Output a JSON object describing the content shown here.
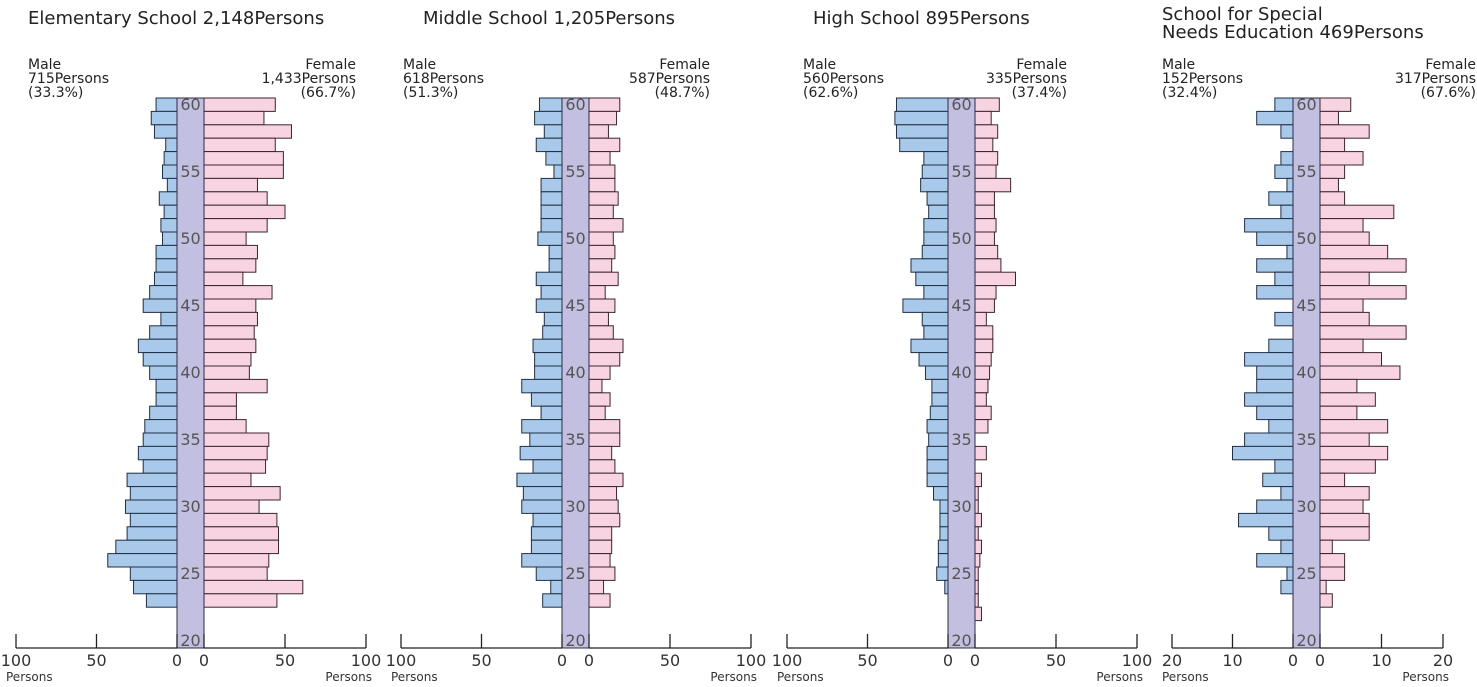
{
  "chart_data": [
    {
      "type": "bar",
      "title": "Elementary School 2,148Persons",
      "male_header": "Male\n715Persons\n(33.3%)",
      "female_header": "Female\n1,433Persons\n(66.7%)",
      "age_labels": [
        "60",
        "55",
        "50",
        "45",
        "40",
        "35",
        "30",
        "25",
        "20"
      ],
      "x_ticks": [
        "100",
        "50",
        "0",
        "0",
        "50",
        "100"
      ],
      "x_unit": "Persons",
      "xlim": [
        0,
        100
      ],
      "ages": [
        60,
        59,
        58,
        57,
        56,
        55,
        54,
        53,
        52,
        51,
        50,
        49,
        48,
        47,
        46,
        45,
        44,
        43,
        42,
        41,
        40,
        39,
        38,
        37,
        36,
        35,
        34,
        33,
        32,
        31,
        30,
        29,
        28,
        27,
        26,
        25,
        24,
        23,
        22,
        21,
        20
      ],
      "series": [
        {
          "name": "Male",
          "values": [
            13,
            16,
            14,
            7,
            8,
            9,
            6,
            11,
            8,
            10,
            9,
            13,
            13,
            14,
            17,
            21,
            10,
            17,
            24,
            21,
            17,
            13,
            13,
            17,
            20,
            21,
            24,
            21,
            31,
            29,
            32,
            29,
            31,
            38,
            43,
            29,
            27,
            19,
            0,
            0,
            0
          ]
        },
        {
          "name": "Female",
          "values": [
            44,
            37,
            54,
            44,
            49,
            49,
            33,
            39,
            50,
            39,
            26,
            33,
            32,
            24,
            42,
            32,
            33,
            31,
            32,
            29,
            28,
            39,
            20,
            20,
            26,
            40,
            39,
            38,
            29,
            47,
            34,
            45,
            46,
            46,
            40,
            39,
            61,
            45,
            0,
            0,
            0
          ]
        }
      ]
    },
    {
      "type": "bar",
      "title": "Middle School 1,205Persons",
      "male_header": "Male\n618Persons\n(51.3%)",
      "female_header": "Female\n587Persons\n(48.7%)",
      "age_labels": [
        "60",
        "55",
        "50",
        "45",
        "40",
        "35",
        "30",
        "25",
        "20"
      ],
      "x_ticks": [
        "100",
        "50",
        "0",
        "0",
        "50",
        "100"
      ],
      "x_unit": "Persons",
      "xlim": [
        0,
        100
      ],
      "ages": [
        60,
        59,
        58,
        57,
        56,
        55,
        54,
        53,
        52,
        51,
        50,
        49,
        48,
        47,
        46,
        45,
        44,
        43,
        42,
        41,
        40,
        39,
        38,
        37,
        36,
        35,
        34,
        33,
        32,
        31,
        30,
        29,
        28,
        27,
        26,
        25,
        24,
        23,
        22,
        21,
        20
      ],
      "series": [
        {
          "name": "Male",
          "values": [
            14,
            17,
            11,
            16,
            10,
            5,
            13,
            13,
            13,
            13,
            15,
            8,
            8,
            16,
            13,
            16,
            11,
            12,
            18,
            17,
            17,
            25,
            19,
            13,
            25,
            20,
            26,
            18,
            28,
            24,
            25,
            18,
            19,
            19,
            25,
            16,
            7,
            12,
            0,
            0,
            0
          ]
        },
        {
          "name": "Female",
          "values": [
            19,
            17,
            12,
            19,
            13,
            16,
            16,
            18,
            15,
            21,
            15,
            16,
            14,
            18,
            10,
            16,
            12,
            15,
            21,
            19,
            13,
            8,
            13,
            10,
            19,
            19,
            14,
            16,
            21,
            17,
            18,
            19,
            14,
            14,
            13,
            16,
            9,
            13,
            0,
            0,
            0
          ]
        }
      ]
    },
    {
      "type": "bar",
      "title": "High School 895Persons",
      "male_header": "Male\n560Persons\n(62.6%)",
      "female_header": "Female\n335Persons\n(37.4%)",
      "age_labels": [
        "60",
        "55",
        "50",
        "45",
        "40",
        "35",
        "30",
        "25",
        "20"
      ],
      "x_ticks": [
        "100",
        "50",
        "0",
        "0",
        "50",
        "100"
      ],
      "x_unit": "Persons",
      "xlim": [
        0,
        100
      ],
      "ages": [
        60,
        59,
        58,
        57,
        56,
        55,
        54,
        53,
        52,
        51,
        50,
        49,
        48,
        47,
        46,
        45,
        44,
        43,
        42,
        41,
        40,
        39,
        38,
        37,
        36,
        35,
        34,
        33,
        32,
        31,
        30,
        29,
        28,
        27,
        26,
        25,
        24,
        23,
        22,
        21,
        20
      ],
      "series": [
        {
          "name": "Male",
          "values": [
            32,
            33,
            32,
            30,
            15,
            16,
            17,
            13,
            12,
            15,
            15,
            16,
            23,
            20,
            15,
            28,
            16,
            15,
            23,
            18,
            14,
            10,
            10,
            11,
            13,
            12,
            13,
            13,
            13,
            9,
            5,
            5,
            5,
            6,
            6,
            7,
            2,
            0,
            0,
            0,
            0
          ]
        },
        {
          "name": "Female",
          "values": [
            15,
            10,
            14,
            11,
            14,
            13,
            22,
            12,
            12,
            13,
            12,
            14,
            16,
            25,
            13,
            12,
            7,
            11,
            11,
            10,
            9,
            8,
            7,
            10,
            8,
            0,
            7,
            0,
            4,
            2,
            2,
            4,
            2,
            4,
            3,
            2,
            2,
            2,
            4,
            0,
            0
          ]
        }
      ]
    },
    {
      "type": "bar",
      "title": "School for Special\nNeeds Education 469Persons",
      "male_header": "Male\n152Persons\n(32.4%)",
      "female_header": "Female\n317Persons\n(67.6%)",
      "age_labels": [
        "60",
        "55",
        "50",
        "45",
        "40",
        "35",
        "30",
        "25",
        "20"
      ],
      "x_ticks": [
        "20",
        "10",
        "0",
        "0",
        "10",
        "20"
      ],
      "x_unit": "Persons",
      "xlim": [
        0,
        20
      ],
      "ages": [
        60,
        59,
        58,
        57,
        56,
        55,
        54,
        53,
        52,
        51,
        50,
        49,
        48,
        47,
        46,
        45,
        44,
        43,
        42,
        41,
        40,
        39,
        38,
        37,
        36,
        35,
        34,
        33,
        32,
        31,
        30,
        29,
        28,
        27,
        26,
        25,
        24,
        23,
        22,
        21,
        20
      ],
      "series": [
        {
          "name": "Male",
          "values": [
            3,
            6,
            2,
            0,
            2,
            3,
            1,
            4,
            2,
            8,
            6,
            1,
            6,
            3,
            6,
            0,
            3,
            0,
            4,
            8,
            6,
            6,
            8,
            6,
            4,
            8,
            10,
            3,
            5,
            2,
            6,
            9,
            4,
            2,
            6,
            1,
            2,
            0,
            0,
            0,
            0
          ]
        },
        {
          "name": "Female",
          "values": [
            5,
            3,
            8,
            4,
            7,
            4,
            3,
            4,
            12,
            7,
            8,
            11,
            14,
            8,
            14,
            7,
            8,
            14,
            7,
            10,
            13,
            6,
            9,
            6,
            11,
            8,
            11,
            9,
            4,
            8,
            7,
            8,
            8,
            2,
            4,
            4,
            1,
            2,
            0,
            0,
            0
          ]
        }
      ]
    }
  ]
}
